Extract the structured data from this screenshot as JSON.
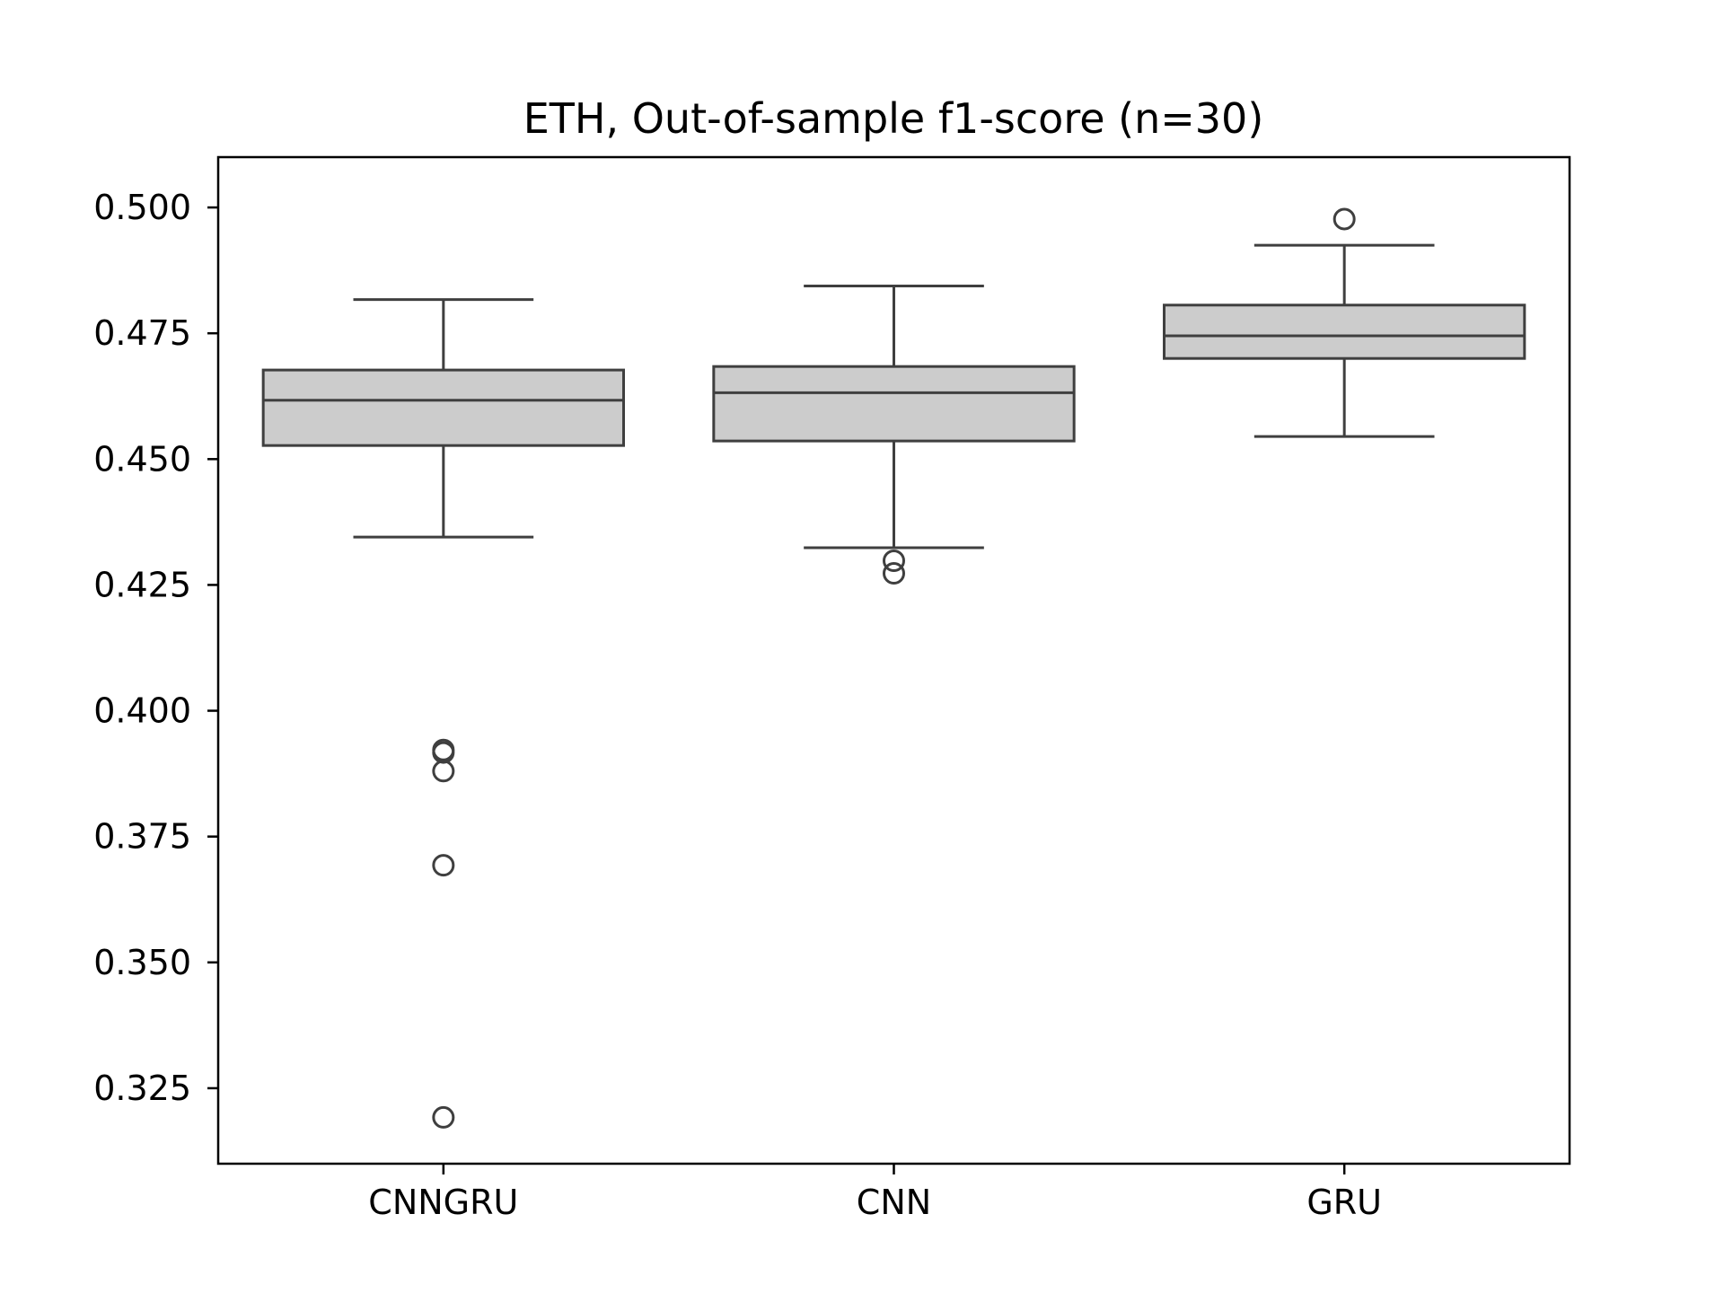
{
  "chart_data": {
    "type": "box",
    "title": "ETH, Out-of-sample f1-score (n=30)",
    "xlabel": "",
    "ylabel": "",
    "ylim": [
      0.31,
      0.51
    ],
    "y_ticks": [
      0.325,
      0.35,
      0.375,
      0.4,
      0.425,
      0.45,
      0.475,
      0.5
    ],
    "y_tick_labels": [
      "0.325",
      "0.350",
      "0.375",
      "0.400",
      "0.425",
      "0.450",
      "0.475",
      "0.500"
    ],
    "categories": [
      "CNNGRU",
      "CNN",
      "GRU"
    ],
    "boxes": [
      {
        "category": "CNNGRU",
        "whisker_low": 0.4345,
        "q1": 0.4527,
        "median": 0.4617,
        "q3": 0.4677,
        "whisker_high": 0.4817,
        "outliers": [
          0.3922,
          0.3917,
          0.388,
          0.3693,
          0.3192
        ]
      },
      {
        "category": "CNN",
        "whisker_low": 0.4324,
        "q1": 0.4536,
        "median": 0.4632,
        "q3": 0.4684,
        "whisker_high": 0.4844,
        "outliers": [
          0.4298,
          0.4273
        ]
      },
      {
        "category": "GRU",
        "whisker_low": 0.4545,
        "q1": 0.47,
        "median": 0.4745,
        "q3": 0.4806,
        "whisker_high": 0.4925,
        "outliers": [
          0.4977
        ]
      }
    ],
    "grid": false,
    "colors": {
      "box_fill": "#cccccc",
      "box_stroke": "#3f3f3f",
      "axes": "#000000"
    }
  }
}
